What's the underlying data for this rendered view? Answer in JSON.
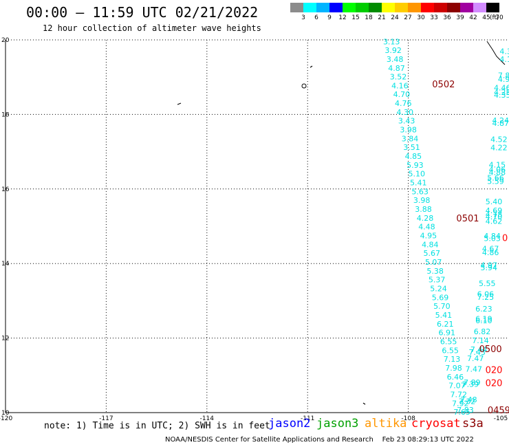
{
  "header": {
    "title": "00:00 – 11:59 UTC 02/21/2022",
    "subtitle": "12 hour collection of altimeter wave heights"
  },
  "colorbar": {
    "unit": "(ft)",
    "bins": [
      {
        "label": "3",
        "color": "#8c8c8c"
      },
      {
        "label": "6",
        "color": "#00ffff"
      },
      {
        "label": "9",
        "color": "#00b4ff"
      },
      {
        "label": "12",
        "color": "#0000ff"
      },
      {
        "label": "15",
        "color": "#00ff00"
      },
      {
        "label": "18",
        "color": "#00cd00"
      },
      {
        "label": "21",
        "color": "#008c00"
      },
      {
        "label": "24",
        "color": "#ffff00"
      },
      {
        "label": "27",
        "color": "#ffcd00"
      },
      {
        "label": "30",
        "color": "#ff9600"
      },
      {
        "label": "33",
        "color": "#ff0000"
      },
      {
        "label": "36",
        "color": "#cd0000"
      },
      {
        "label": "39",
        "color": "#8c0000"
      },
      {
        "label": "42",
        "color": "#a000a0"
      },
      {
        "label": "45",
        "color": "#d28cff"
      },
      {
        "label": "70",
        "color": "#000000"
      }
    ]
  },
  "axes": {
    "lon_ticks": [
      "-120",
      "-117",
      "-114",
      "-111",
      "-108",
      "-105"
    ],
    "lat_ticks": [
      "10",
      "12",
      "14",
      "16",
      "18",
      "20"
    ],
    "lon_range": [
      -120,
      -105
    ],
    "lat_range": [
      10,
      20
    ],
    "grid": true
  },
  "tracks": {
    "main_cyan": {
      "color": "#00e0e0",
      "points": [
        {
          "lon": -108.5,
          "lat": 19.95,
          "v": "3.13"
        },
        {
          "lon": -108.45,
          "lat": 19.72,
          "v": "3.92"
        },
        {
          "lon": -108.4,
          "lat": 19.48,
          "v": "3.48"
        },
        {
          "lon": -108.35,
          "lat": 19.24,
          "v": "4.87"
        },
        {
          "lon": -108.3,
          "lat": 19.01,
          "v": "3.52"
        },
        {
          "lon": -108.25,
          "lat": 18.77,
          "v": "4.16"
        },
        {
          "lon": -108.2,
          "lat": 18.54,
          "v": "4.70"
        },
        {
          "lon": -108.15,
          "lat": 18.3,
          "v": "4.76"
        },
        {
          "lon": -108.1,
          "lat": 18.06,
          "v": "4.30"
        },
        {
          "lon": -108.05,
          "lat": 17.83,
          "v": "3.43"
        },
        {
          "lon": -108.0,
          "lat": 17.59,
          "v": "3.98"
        },
        {
          "lon": -107.95,
          "lat": 17.35,
          "v": "3.84"
        },
        {
          "lon": -107.9,
          "lat": 17.12,
          "v": "3.51"
        },
        {
          "lon": -107.85,
          "lat": 16.88,
          "v": "4.85"
        },
        {
          "lon": -107.8,
          "lat": 16.64,
          "v": "5.93"
        },
        {
          "lon": -107.75,
          "lat": 16.41,
          "v": "5.10"
        },
        {
          "lon": -107.7,
          "lat": 16.17,
          "v": "5.41"
        },
        {
          "lon": -107.65,
          "lat": 15.93,
          "v": "5.63"
        },
        {
          "lon": -107.6,
          "lat": 15.7,
          "v": "3.98"
        },
        {
          "lon": -107.55,
          "lat": 15.46,
          "v": "3.88"
        },
        {
          "lon": -107.5,
          "lat": 15.22,
          "v": "4.28"
        },
        {
          "lon": -107.45,
          "lat": 14.99,
          "v": "4.48"
        },
        {
          "lon": -107.4,
          "lat": 14.75,
          "v": "4.95"
        },
        {
          "lon": -107.35,
          "lat": 14.51,
          "v": "4.84"
        },
        {
          "lon": -107.3,
          "lat": 14.28,
          "v": "5.67"
        },
        {
          "lon": -107.25,
          "lat": 14.04,
          "v": "5.07"
        },
        {
          "lon": -107.2,
          "lat": 13.8,
          "v": "5.38"
        },
        {
          "lon": -107.15,
          "lat": 13.57,
          "v": "5.37"
        },
        {
          "lon": -107.1,
          "lat": 13.33,
          "v": "5.24"
        },
        {
          "lon": -107.05,
          "lat": 13.09,
          "v": "5.69"
        },
        {
          "lon": -107.0,
          "lat": 12.86,
          "v": "5.70"
        },
        {
          "lon": -106.95,
          "lat": 12.62,
          "v": "5.41"
        },
        {
          "lon": -106.9,
          "lat": 12.38,
          "v": "6.21"
        },
        {
          "lon": -106.85,
          "lat": 12.15,
          "v": "6.91"
        },
        {
          "lon": -106.8,
          "lat": 11.91,
          "v": "6.55"
        },
        {
          "lon": -106.75,
          "lat": 11.67,
          "v": "6.55"
        },
        {
          "lon": -106.7,
          "lat": 11.44,
          "v": "7.13"
        },
        {
          "lon": -106.65,
          "lat": 11.2,
          "v": "7.98"
        },
        {
          "lon": -106.6,
          "lat": 10.96,
          "v": "6.46"
        },
        {
          "lon": -106.55,
          "lat": 10.73,
          "v": "7.07"
        },
        {
          "lon": -106.5,
          "lat": 10.49,
          "v": "7.72"
        },
        {
          "lon": -106.45,
          "lat": 10.25,
          "v": "7.92"
        },
        {
          "lon": -106.4,
          "lat": 10.02,
          "v": "7.65"
        }
      ]
    },
    "right_cyan": {
      "color": "#00e0e0",
      "points": [
        {
          "lon": -105.1,
          "lat": 19.7,
          "v": "4.3"
        },
        {
          "lon": -105.1,
          "lat": 19.48,
          "v": "4.1"
        },
        {
          "lon": -105.15,
          "lat": 19.05,
          "v": "7.8"
        },
        {
          "lon": -105.15,
          "lat": 18.95,
          "v": "4.9"
        },
        {
          "lon": -105.2,
          "lat": 18.72,
          "v": "4.46"
        },
        {
          "lon": -105.2,
          "lat": 18.6,
          "v": "4.25"
        },
        {
          "lon": -105.2,
          "lat": 18.52,
          "v": "4.35"
        },
        {
          "lon": -105.25,
          "lat": 17.84,
          "v": "4.24"
        },
        {
          "lon": -105.25,
          "lat": 17.77,
          "v": "4.87"
        },
        {
          "lon": -105.3,
          "lat": 17.33,
          "v": "4.52"
        },
        {
          "lon": -105.3,
          "lat": 17.11,
          "v": "4.22"
        },
        {
          "lon": -105.35,
          "lat": 16.65,
          "v": "4.15"
        },
        {
          "lon": -105.35,
          "lat": 16.52,
          "v": "4.06"
        },
        {
          "lon": -105.35,
          "lat": 16.45,
          "v": "4.88"
        },
        {
          "lon": -105.4,
          "lat": 16.3,
          "v": "5.66"
        },
        {
          "lon": -105.4,
          "lat": 16.21,
          "v": "5.59"
        },
        {
          "lon": -105.45,
          "lat": 15.66,
          "v": "5.40"
        },
        {
          "lon": -105.45,
          "lat": 15.42,
          "v": "4.69"
        },
        {
          "lon": -105.45,
          "lat": 15.32,
          "v": "4.78"
        },
        {
          "lon": -105.45,
          "lat": 15.26,
          "v": "4.70"
        },
        {
          "lon": -105.45,
          "lat": 15.14,
          "v": "4.62"
        },
        {
          "lon": -105.5,
          "lat": 14.74,
          "v": "4.84"
        },
        {
          "lon": -105.5,
          "lat": 14.68,
          "v": "5.03"
        },
        {
          "lon": -105.55,
          "lat": 14.4,
          "v": "4.67"
        },
        {
          "lon": -105.55,
          "lat": 14.3,
          "v": "4.86"
        },
        {
          "lon": -105.6,
          "lat": 13.96,
          "v": "4.97"
        },
        {
          "lon": -105.6,
          "lat": 13.89,
          "v": "5.94"
        },
        {
          "lon": -105.65,
          "lat": 13.47,
          "v": "5.55"
        },
        {
          "lon": -105.7,
          "lat": 13.18,
          "v": "6.06"
        },
        {
          "lon": -105.7,
          "lat": 13.1,
          "v": "7.25"
        },
        {
          "lon": -105.75,
          "lat": 12.79,
          "v": "6.23"
        },
        {
          "lon": -105.75,
          "lat": 12.52,
          "v": "6.19"
        },
        {
          "lon": -105.75,
          "lat": 12.47,
          "v": "6.10"
        },
        {
          "lon": -105.8,
          "lat": 12.18,
          "v": "6.82"
        },
        {
          "lon": -105.85,
          "lat": 11.94,
          "v": "7.14"
        },
        {
          "lon": -105.9,
          "lat": 11.7,
          "v": "7.44"
        },
        {
          "lon": -105.95,
          "lat": 11.62,
          "v": "7.43"
        },
        {
          "lon": -106.0,
          "lat": 11.46,
          "v": "7.47"
        },
        {
          "lon": -106.05,
          "lat": 11.17,
          "v": "7.47"
        },
        {
          "lon": -106.1,
          "lat": 10.81,
          "v": "7.89"
        },
        {
          "lon": -106.15,
          "lat": 10.77,
          "v": "7.39"
        },
        {
          "lon": -106.2,
          "lat": 10.35,
          "v": "7.48"
        },
        {
          "lon": -106.25,
          "lat": 10.3,
          "v": "7.32"
        },
        {
          "lon": -106.3,
          "lat": 10.07,
          "v": "7.83"
        }
      ]
    }
  },
  "time_labels": [
    {
      "text": "0502",
      "lon": -106.95,
      "lat": 18.82,
      "color": "#8c0000"
    },
    {
      "text": "0501",
      "lon": -106.23,
      "lat": 15.22,
      "color": "#8c0000"
    },
    {
      "text": "0500",
      "lon": -105.55,
      "lat": 11.72,
      "color": "#8c0000"
    },
    {
      "text": "0459",
      "lon": -105.3,
      "lat": 10.07,
      "color": "#8c0000"
    },
    {
      "text": "020",
      "lon": -105.45,
      "lat": 11.15,
      "color": "#ff0000"
    },
    {
      "text": "020",
      "lon": -105.45,
      "lat": 10.8,
      "color": "#ff0000"
    },
    {
      "text": "0",
      "lon": -105.12,
      "lat": 14.7,
      "color": "#ff0000"
    }
  ],
  "note": "note: 1) Time is in UTC; 2) SWH is in feet",
  "satellites": [
    {
      "name": "jason2",
      "color": "#0000ff"
    },
    {
      "name": "jason3",
      "color": "#00a000"
    },
    {
      "name": "altika",
      "color": "#ff9600"
    },
    {
      "name": "cryosat",
      "color": "#ff0000"
    },
    {
      "name": "s3a",
      "color": "#8c0000"
    }
  ],
  "footer": "NOAA/NESDIS Center for Satellite Applications and Research    Feb 23 08:29:13 UTC 2022"
}
